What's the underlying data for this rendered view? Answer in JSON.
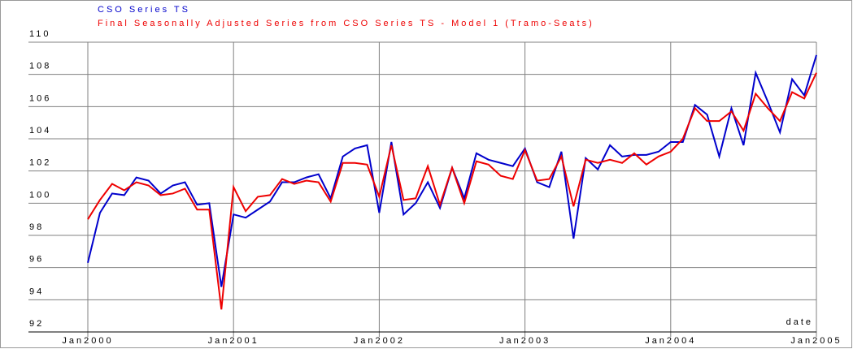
{
  "chart_data": {
    "type": "line",
    "x_label": "date",
    "categories": [
      "Jan2000",
      null,
      null,
      null,
      null,
      null,
      null,
      null,
      null,
      null,
      null,
      null,
      "Jan2001",
      null,
      null,
      null,
      null,
      null,
      null,
      null,
      null,
      null,
      null,
      null,
      "Jan2002",
      null,
      null,
      null,
      null,
      null,
      null,
      null,
      null,
      null,
      null,
      null,
      "Jan2003",
      null,
      null,
      null,
      null,
      null,
      null,
      null,
      null,
      null,
      null,
      null,
      "Jan2004",
      null,
      null,
      null,
      null,
      null,
      null,
      null,
      null,
      null,
      null,
      null,
      "Jan2005"
    ],
    "series": [
      {
        "name": "CSO Series TS",
        "color": "#0000cc",
        "values": [
          96.3,
          99.4,
          100.6,
          100.5,
          101.6,
          101.4,
          100.6,
          101.1,
          101.3,
          99.9,
          100.0,
          94.8,
          99.3,
          99.1,
          99.6,
          100.1,
          101.3,
          101.3,
          101.6,
          101.8,
          100.3,
          102.9,
          103.4,
          103.6,
          99.4,
          103.8,
          99.3,
          100.0,
          101.3,
          99.7,
          102.2,
          100.3,
          103.1,
          102.7,
          102.5,
          102.3,
          103.4,
          101.3,
          101.0,
          103.2,
          97.8,
          102.8,
          102.1,
          103.6,
          102.9,
          103.0,
          103.0,
          103.2,
          103.8,
          103.8,
          106.1,
          105.5,
          102.9,
          105.9,
          103.6,
          108.1,
          106.3,
          104.4,
          107.7,
          106.7,
          109.2
        ]
      },
      {
        "name": "Final Seasonally Adjusted Series from CSO Series TS - Model 1 (Tramo-Seats)",
        "color": "#ee0000",
        "values": [
          99.0,
          100.2,
          101.2,
          100.8,
          101.3,
          101.1,
          100.5,
          100.6,
          100.9,
          99.6,
          99.6,
          93.4,
          101.0,
          99.5,
          100.4,
          100.5,
          101.5,
          101.2,
          101.4,
          101.3,
          100.1,
          102.5,
          102.5,
          102.4,
          100.4,
          103.6,
          100.2,
          100.3,
          102.3,
          99.9,
          102.2,
          100.0,
          102.6,
          102.4,
          101.7,
          101.5,
          103.3,
          101.4,
          101.5,
          102.9,
          99.8,
          102.7,
          102.5,
          102.7,
          102.5,
          103.1,
          102.4,
          102.9,
          103.2,
          104.0,
          105.9,
          105.1,
          105.1,
          105.7,
          104.5,
          106.8,
          105.9,
          105.1,
          106.9,
          106.5,
          108.1
        ]
      }
    ],
    "ylim": [
      92,
      110
    ],
    "yticks": [
      92,
      94,
      96,
      98,
      100,
      102,
      104,
      106,
      108,
      110
    ],
    "grid": true
  }
}
